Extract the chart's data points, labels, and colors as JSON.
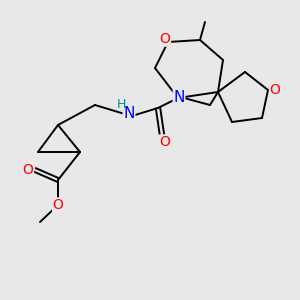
{
  "bg_color": "#e8e8e8",
  "bond_color": "#000000",
  "atom_colors": {
    "O": "#ff0000",
    "N": "#0000ff",
    "H": "#008b8b",
    "C": "#000000"
  },
  "figsize": [
    3.0,
    3.0
  ],
  "dpi": 100
}
